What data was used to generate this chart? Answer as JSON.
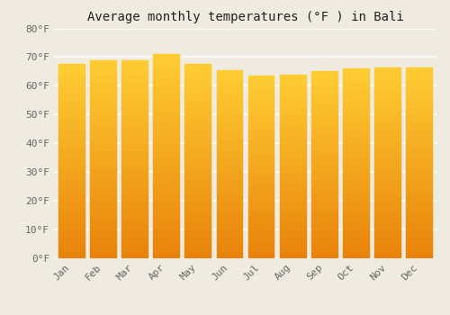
{
  "title": "Average monthly temperatures (°F ) in Bali",
  "months": [
    "Jan",
    "Feb",
    "Mar",
    "Apr",
    "May",
    "Jun",
    "Jul",
    "Aug",
    "Sep",
    "Oct",
    "Nov",
    "Dec"
  ],
  "values": [
    67.5,
    69.0,
    69.0,
    71.0,
    67.5,
    65.5,
    63.5,
    64.0,
    65.0,
    66.0,
    66.5,
    66.5
  ],
  "ylim": [
    0,
    80
  ],
  "yticks": [
    0,
    10,
    20,
    30,
    40,
    50,
    60,
    70,
    80
  ],
  "ytick_labels": [
    "0°F",
    "10°F",
    "20°F",
    "30°F",
    "40°F",
    "50°F",
    "60°F",
    "70°F",
    "80°F"
  ],
  "bar_color_bottom": "#E8820A",
  "bar_color_top": "#FFCC33",
  "background_color": "#F0EBE0",
  "grid_color": "#FFFFFF",
  "title_fontsize": 10,
  "tick_fontsize": 8,
  "bar_width": 0.82
}
